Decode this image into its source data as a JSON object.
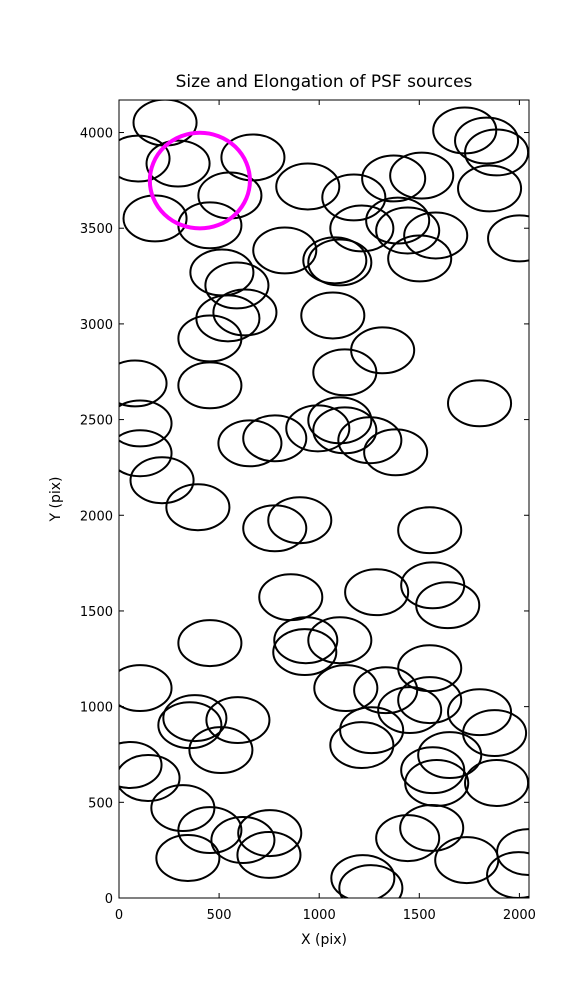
{
  "chart_data": {
    "type": "ellipse",
    "title": "Size and Elongation of PSF sources",
    "xlabel": "X (pix)",
    "ylabel": "Y (pix)",
    "xlim": [
      0,
      2048
    ],
    "ylim": [
      0,
      4170
    ],
    "xticks": [
      0,
      500,
      1000,
      1500,
      2000
    ],
    "yticks": [
      0,
      500,
      1000,
      1500,
      2000,
      2500,
      3000,
      3500,
      4000
    ],
    "series": [
      {
        "color": "#000000",
        "width": 315,
        "height": 240,
        "x": [
          230,
          95,
          295,
          180,
          454,
          554,
          669,
          943,
          1173,
          1372,
          1512,
          1727,
          1836,
          1886,
          1851,
          2001,
          1213,
          1392,
          1442,
          1582,
          1502,
          828,
          1103,
          1078,
          514,
          589,
          629,
          544,
          454,
          1068,
          1317,
          1128,
          454,
          80,
          105,
          105,
          215,
          394,
          654,
          778,
          993,
          1103,
          1128,
          1253,
          1382,
          1801,
          1552,
          778,
          903,
          1287,
          1567,
          1642,
          858,
          933,
          928,
          1103,
          454,
          1133,
          1332,
          1452,
          1552,
          1552,
          1262,
          1213,
          105,
          379,
          594,
          509,
          55,
          145,
          319,
          454,
          619,
          753,
          749,
          344,
          1218,
          1258,
          1442,
          1562,
          1737,
          2046,
          1996,
          1886,
          1876,
          1801,
          1587,
          1567,
          1652,
          354
        ],
        "y": [
          4052,
          3864,
          3838,
          3551,
          3515,
          3671,
          3870,
          3718,
          3661,
          3760,
          3775,
          4011,
          3958,
          3896,
          3708,
          3447,
          3499,
          3540,
          3488,
          3462,
          3342,
          3384,
          3321,
          3332,
          3269,
          3201,
          3060,
          3029,
          2924,
          3044,
          2862,
          2747,
          2679,
          2689,
          2480,
          2324,
          2183,
          2042,
          2376,
          2402,
          2454,
          2496,
          2444,
          2392,
          2329,
          2585,
          1922,
          1932,
          1974,
          1598,
          1634,
          1530,
          1572,
          1347,
          1285,
          1347,
          1332,
          1097,
          1086,
          982,
          1201,
          1034,
          877,
          799,
          1097,
          940,
          930,
          773,
          695,
          627,
          470,
          355,
          303,
          339,
          225,
          209,
          104,
          52,
          313,
          366,
          198,
          240,
          120,
          601,
          862,
          971,
          601,
          668,
          747,
          903
        ]
      },
      {
        "color": "#ff00ff",
        "width": 500,
        "height": 500,
        "x": [
          404
        ],
        "y": [
          3749
        ]
      }
    ]
  }
}
